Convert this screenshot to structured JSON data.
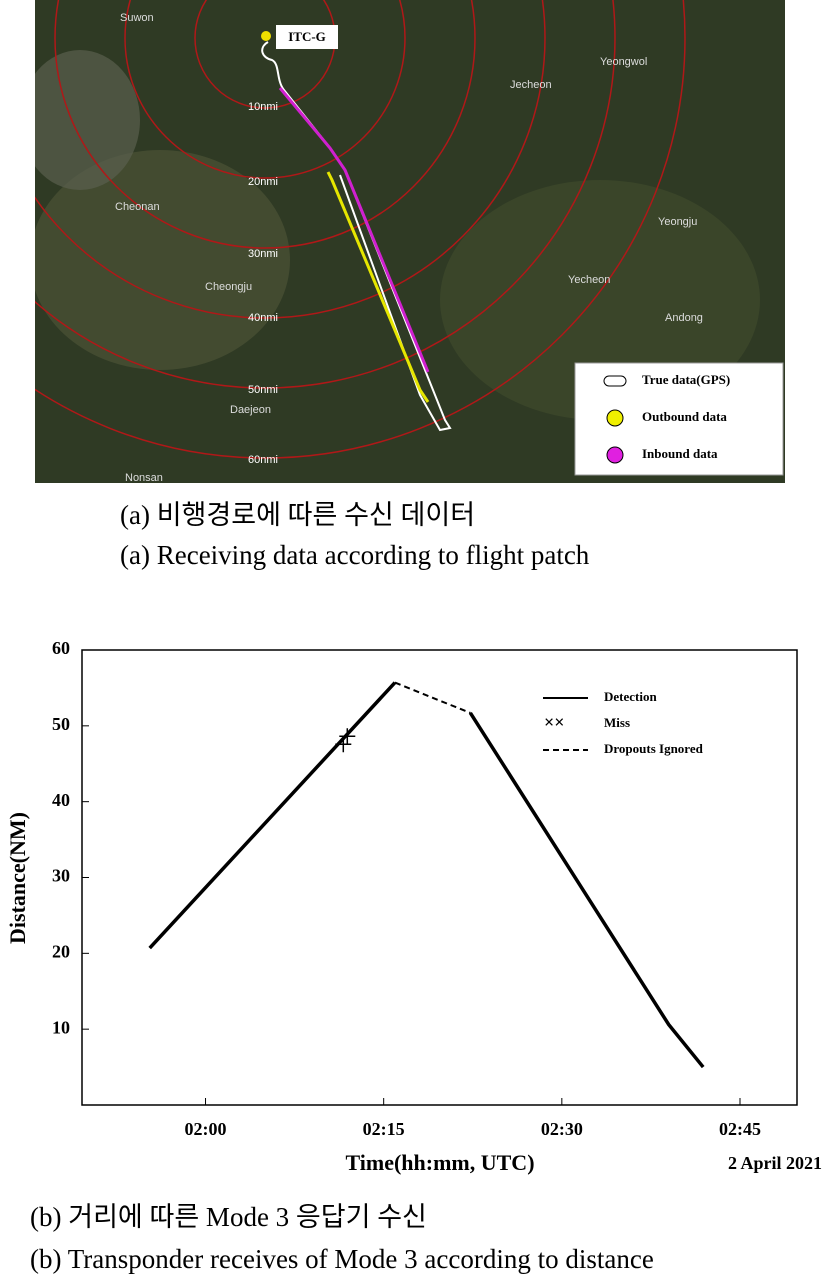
{
  "map": {
    "site_label": "ITC-G",
    "rings": [
      "10nmi",
      "20nmi",
      "30nmi",
      "40nmi",
      "50nmi",
      "60nmi"
    ],
    "cities": [
      "Suwon",
      "Jecheon",
      "Yeongwol",
      "Cheonan",
      "Yeongju",
      "Cheongju",
      "Yecheon",
      "Andong",
      "Daejeon",
      "Nonsan"
    ],
    "legend": [
      "True data(GPS)",
      "Outbound data",
      "Inbound data"
    ]
  },
  "captions": {
    "a_korean": "(a) 비행경로에 따른 수신 데이터",
    "a_english": "(a) Receiving data according to flight patch",
    "b_korean": "(b) 거리에 따른 Mode 3 응답기 수신",
    "b_english": "(b) Transponder receives of Mode 3 according to distance"
  },
  "chart_data": {
    "type": "line",
    "x_label": "Time(hh:mm, UTC)",
    "y_label": "Distance(NM)",
    "annotation": "2 April 2021",
    "xlim": [
      109.6,
      169.8
    ],
    "ylim": [
      0,
      60
    ],
    "xticks": [
      {
        "value": 120,
        "label": "02:00"
      },
      {
        "value": 135,
        "label": "02:15"
      },
      {
        "value": 150,
        "label": "02:30"
      },
      {
        "value": 165,
        "label": "02:45"
      }
    ],
    "yticks": [
      10,
      20,
      30,
      40,
      50,
      60
    ],
    "series": [
      {
        "name": "Detection",
        "color": "#000000",
        "style": "solid",
        "x": [
          115.3,
          135.95,
          139,
          142.3,
          159.0,
          161.9
        ],
        "values": [
          20.7,
          55.7,
          null,
          51.7,
          10.6,
          5.0
        ]
      },
      {
        "name": "Miss",
        "color": "#000000",
        "style": "marker",
        "x": [
          131.6
        ],
        "values": [
          48.1
        ]
      },
      {
        "name": "Dropouts Ignored",
        "color": "#000000",
        "style": "dashed",
        "x": [
          135.95,
          142.3
        ],
        "values": [
          55.7,
          51.7
        ]
      }
    ]
  }
}
